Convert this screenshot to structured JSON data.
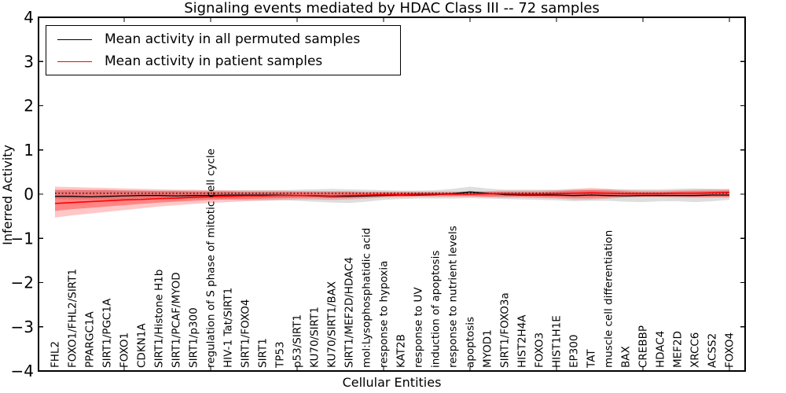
{
  "legend": {
    "items": [
      {
        "label": "Mean activity in all permuted samples",
        "color": "#000000"
      },
      {
        "label": "Mean activity in patient samples",
        "color": "#ff0000"
      }
    ]
  },
  "chart_data": {
    "type": "line",
    "title": "Signaling events mediated by HDAC Class III -- 72 samples",
    "xlabel": "Cellular Entities",
    "ylabel": "Inferred Activity",
    "ylim": [
      -4,
      4
    ],
    "yticks": [
      -4,
      -3,
      -2,
      -1,
      0,
      1,
      2,
      3,
      4
    ],
    "ytick_labels": [
      "−4",
      "−3",
      "−2",
      "−1",
      "0",
      "1",
      "2",
      "3",
      "4"
    ],
    "x_major_tick_positions": [
      5,
      10,
      15,
      20,
      25,
      30,
      35,
      40
    ],
    "grid": false,
    "legend_position": "upper left",
    "zero_line": {
      "style": "dotted",
      "y": 0.02,
      "color": "#000000"
    },
    "band_colors": {
      "permuted": "rgba(0,0,0,0.13)",
      "patient_outer": "rgba(255,0,0,0.22)",
      "patient_inner": "rgba(255,0,0,0.33)"
    },
    "categories": [
      "FHL2",
      "FOXO1/FHL2/SIRT1",
      "PPARGC1A",
      "SIRT1/PGC1A",
      "FOXO1",
      "CDKN1A",
      "SIRT1/Histone H1b",
      "SIRT1/PCAF/MYOD",
      "SIRT1/p300",
      "regulation of S phase of mitotic cell cycle",
      "HIV-1 Tat/SIRT1",
      "SIRT1/FOXO4",
      "SIRT1",
      "TP53",
      "p53/SIRT1",
      "KU70/SIRT1",
      "KU70/SIRT1/BAX",
      "SIRT1/MEF2D/HDAC4",
      "mol:Lysophosphatidic acid",
      "response to hypoxia",
      "KAT2B",
      "response to UV",
      "induction of apoptosis",
      "response to nutrient levels",
      "apoptosis",
      "MYOD1",
      "SIRT1/FOXO3a",
      "HIST2H4A",
      "FOXO3",
      "HIST1H1E",
      "EP300",
      "TAT",
      "muscle cell differentiation",
      "BAX",
      "CREBBP",
      "HDAC4",
      "MEF2D",
      "XRCC6",
      "ACSS2",
      "FOXO4"
    ],
    "series": [
      {
        "name": "Mean activity in all permuted samples",
        "color": "#000000",
        "values": [
          -0.05,
          -0.05,
          -0.06,
          -0.05,
          -0.04,
          -0.03,
          -0.03,
          -0.04,
          -0.03,
          -0.03,
          -0.02,
          -0.02,
          -0.02,
          -0.02,
          -0.03,
          -0.04,
          -0.05,
          -0.05,
          -0.04,
          -0.03,
          -0.02,
          -0.02,
          -0.01,
          0.01,
          0.05,
          0.02,
          -0.01,
          -0.02,
          -0.02,
          -0.02,
          -0.03,
          -0.02,
          -0.03,
          -0.04,
          -0.03,
          -0.03,
          -0.03,
          -0.03,
          -0.02,
          -0.02
        ],
        "band_lo": [
          -0.11,
          -0.12,
          -0.12,
          -0.12,
          -0.11,
          -0.1,
          -0.1,
          -0.11,
          -0.11,
          -0.11,
          -0.12,
          -0.14,
          -0.15,
          -0.14,
          -0.15,
          -0.17,
          -0.19,
          -0.2,
          -0.17,
          -0.13,
          -0.11,
          -0.1,
          -0.1,
          -0.1,
          -0.09,
          -0.1,
          -0.11,
          -0.12,
          -0.13,
          -0.14,
          -0.16,
          -0.15,
          -0.15,
          -0.17,
          -0.18,
          -0.16,
          -0.16,
          -0.18,
          -0.16,
          -0.13
        ],
        "band_hi": [
          0.08,
          0.09,
          0.1,
          0.1,
          0.09,
          0.08,
          0.08,
          0.08,
          0.08,
          0.08,
          0.08,
          0.09,
          0.09,
          0.09,
          0.1,
          0.11,
          0.12,
          0.11,
          0.1,
          0.09,
          0.08,
          0.08,
          0.09,
          0.12,
          0.17,
          0.13,
          0.1,
          0.1,
          0.1,
          0.1,
          0.1,
          0.11,
          0.11,
          0.11,
          0.11,
          0.11,
          0.12,
          0.13,
          0.12,
          0.1
        ]
      },
      {
        "name": "Mean activity in patient samples",
        "color": "#ff0000",
        "values": [
          -0.21,
          -0.19,
          -0.17,
          -0.15,
          -0.13,
          -0.12,
          -0.1,
          -0.09,
          -0.07,
          -0.06,
          -0.05,
          -0.04,
          -0.04,
          -0.03,
          -0.03,
          -0.03,
          -0.04,
          -0.03,
          -0.02,
          -0.01,
          -0.01,
          0.0,
          0.0,
          0.0,
          0.0,
          0.01,
          0.01,
          0.0,
          0.0,
          0.01,
          0.02,
          0.03,
          0.02,
          0.01,
          0.01,
          0.01,
          0.02,
          0.02,
          0.03,
          0.04
        ],
        "band_lo": [
          -0.53,
          -0.48,
          -0.44,
          -0.4,
          -0.36,
          -0.32,
          -0.28,
          -0.25,
          -0.22,
          -0.2,
          -0.18,
          -0.16,
          -0.14,
          -0.13,
          -0.12,
          -0.12,
          -0.13,
          -0.12,
          -0.1,
          -0.08,
          -0.07,
          -0.06,
          -0.06,
          -0.06,
          -0.06,
          -0.07,
          -0.08,
          -0.08,
          -0.09,
          -0.1,
          -0.12,
          -0.12,
          -0.1,
          -0.08,
          -0.07,
          -0.07,
          -0.08,
          -0.08,
          -0.08,
          -0.08
        ],
        "band_hi": [
          0.17,
          0.16,
          0.15,
          0.14,
          0.13,
          0.12,
          0.11,
          0.1,
          0.1,
          0.09,
          0.09,
          0.08,
          0.08,
          0.08,
          0.07,
          0.07,
          0.07,
          0.07,
          0.06,
          0.06,
          0.06,
          0.06,
          0.06,
          0.06,
          0.06,
          0.07,
          0.08,
          0.08,
          0.08,
          0.09,
          0.12,
          0.14,
          0.12,
          0.09,
          0.08,
          0.08,
          0.09,
          0.1,
          0.11,
          0.12
        ],
        "inner_lo": [
          -0.38,
          -0.34,
          -0.31,
          -0.28,
          -0.25,
          -0.22,
          -0.19,
          -0.17,
          -0.15,
          -0.13,
          -0.12,
          -0.11,
          -0.1,
          -0.09,
          -0.08,
          -0.08,
          -0.09,
          -0.08,
          -0.07,
          -0.05,
          -0.05,
          -0.04,
          -0.04,
          -0.04,
          -0.04,
          -0.05,
          -0.05,
          -0.05,
          -0.06,
          -0.07,
          -0.08,
          -0.08,
          -0.07,
          -0.05,
          -0.05,
          -0.05,
          -0.05,
          -0.06,
          -0.06,
          -0.06
        ],
        "inner_hi": [
          0.1,
          0.1,
          0.09,
          0.09,
          0.08,
          0.08,
          0.07,
          0.07,
          0.06,
          0.06,
          0.06,
          0.05,
          0.05,
          0.05,
          0.05,
          0.05,
          0.05,
          0.05,
          0.04,
          0.04,
          0.04,
          0.04,
          0.04,
          0.04,
          0.04,
          0.05,
          0.05,
          0.05,
          0.05,
          0.06,
          0.08,
          0.09,
          0.08,
          0.06,
          0.05,
          0.05,
          0.06,
          0.07,
          0.07,
          0.08
        ]
      }
    ]
  }
}
